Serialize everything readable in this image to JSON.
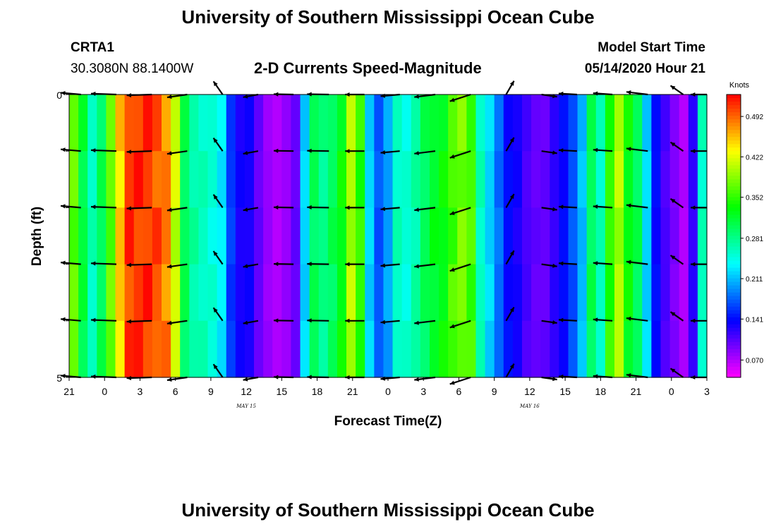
{
  "header": {
    "title": "University of Southern Mississippi Ocean Cube",
    "station_id": "CRTA1",
    "location": "30.3080N 88.1400W",
    "plot_title": "2-D Currents Speed-Magnitude",
    "model_start_label": "Model Start Time",
    "model_start_value": "05/14/2020 Hour 21",
    "footer_title": "University of Southern Mississippi Ocean Cube"
  },
  "chart_data": {
    "type": "heatmap",
    "title": "2-D Currents Speed-Magnitude",
    "xlabel": "Forecast Time(Z)",
    "ylabel": "Depth (ft)",
    "x_ticks": [
      "21",
      "0",
      "3",
      "6",
      "9",
      "12",
      "15",
      "18",
      "21",
      "0",
      "3",
      "6",
      "9",
      "12",
      "15",
      "18",
      "21",
      "0",
      "3"
    ],
    "x_range_hours": [
      0,
      54
    ],
    "y_ticks": [
      "0",
      "5"
    ],
    "y_range": [
      0,
      5
    ],
    "date_labels": [
      {
        "text": "MAY 15",
        "hour": 15
      },
      {
        "text": "MAY 16",
        "hour": 39
      }
    ],
    "colorbar": {
      "unit": "Knots",
      "min": 0.04,
      "max": 0.53,
      "ticks": [
        "0.492",
        "0.422",
        "0.352",
        "0.281",
        "0.211",
        "0.141",
        "0.070"
      ],
      "tick_values": [
        0.492,
        0.422,
        0.352,
        0.281,
        0.211,
        0.141,
        0.07
      ]
    },
    "speed_by_hour": [
      0.37,
      0.31,
      0.26,
      0.3,
      0.37,
      0.45,
      0.51,
      0.51,
      0.51,
      0.5,
      0.48,
      0.41,
      0.3,
      0.27,
      0.26,
      0.25,
      0.23,
      0.16,
      0.13,
      0.13,
      0.1,
      0.08,
      0.07,
      0.08,
      0.1,
      0.22,
      0.3,
      0.28,
      0.3,
      0.33,
      0.4,
      0.35,
      0.22,
      0.17,
      0.2,
      0.26,
      0.25,
      0.27,
      0.3,
      0.32,
      0.33,
      0.36,
      0.38,
      0.36,
      0.26,
      0.22,
      0.18,
      0.14,
      0.13,
      0.11,
      0.1,
      0.1,
      0.12,
      0.14,
      0.17,
      0.21,
      0.3,
      0.26,
      0.35,
      0.4,
      0.33,
      0.3,
      0.22,
      0.14,
      0.11,
      0.09,
      0.07,
      0.12,
      0.26
    ],
    "depth_rows": 5,
    "vector_depths": [
      0,
      1,
      2,
      3,
      4,
      5
    ],
    "vector_hours": [
      1,
      4,
      7,
      10,
      13,
      16,
      19,
      22,
      25,
      28,
      31,
      34,
      37,
      40,
      43,
      46,
      49,
      52,
      54
    ],
    "vector_directions_deg": [
      185,
      182,
      178,
      172,
      235,
      170,
      181,
      181,
      180,
      175,
      173,
      162,
      300,
      8,
      183,
      184,
      187,
      215,
      180
    ],
    "vector_speeds": [
      0.3,
      0.5,
      0.49,
      0.3,
      0.13,
      0.1,
      0.28,
      0.36,
      0.26,
      0.26,
      0.33,
      0.36,
      0.12,
      0.12,
      0.22,
      0.26,
      0.35,
      0.11,
      0.14
    ]
  }
}
